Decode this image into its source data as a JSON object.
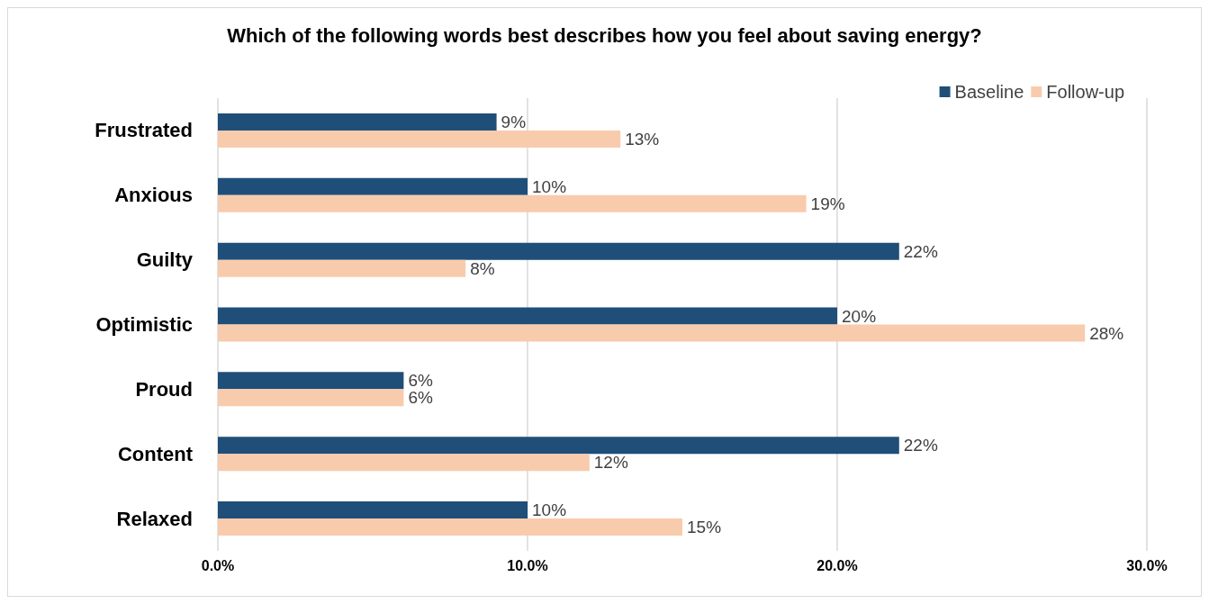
{
  "chart_data": {
    "type": "bar",
    "orientation": "horizontal",
    "title": "Which of the following words best describes how you feel about saving energy?",
    "categories": [
      "Frustrated",
      "Anxious",
      "Guilty",
      "Optimistic",
      "Proud",
      "Content",
      "Relaxed"
    ],
    "series": [
      {
        "name": "Baseline",
        "color": "#1f4e79",
        "values": [
          9,
          10,
          22,
          20,
          6,
          22,
          10
        ],
        "value_labels": [
          "9%",
          "10%",
          "22%",
          "20%",
          "6%",
          "22%",
          "10%"
        ]
      },
      {
        "name": "Follow-up",
        "color": "#f8cbad",
        "values": [
          13,
          19,
          8,
          28,
          6,
          12,
          15
        ],
        "value_labels": [
          "13%",
          "19%",
          "8%",
          "28%",
          "6%",
          "12%",
          "15%"
        ]
      }
    ],
    "xlim": [
      0,
      30
    ],
    "xticks": [
      {
        "value": 0,
        "label": "0.0%"
      },
      {
        "value": 10,
        "label": "10.0%"
      },
      {
        "value": 20,
        "label": "20.0%"
      },
      {
        "value": 30,
        "label": "30.0%"
      }
    ],
    "grid": "x",
    "legend": "top right"
  }
}
